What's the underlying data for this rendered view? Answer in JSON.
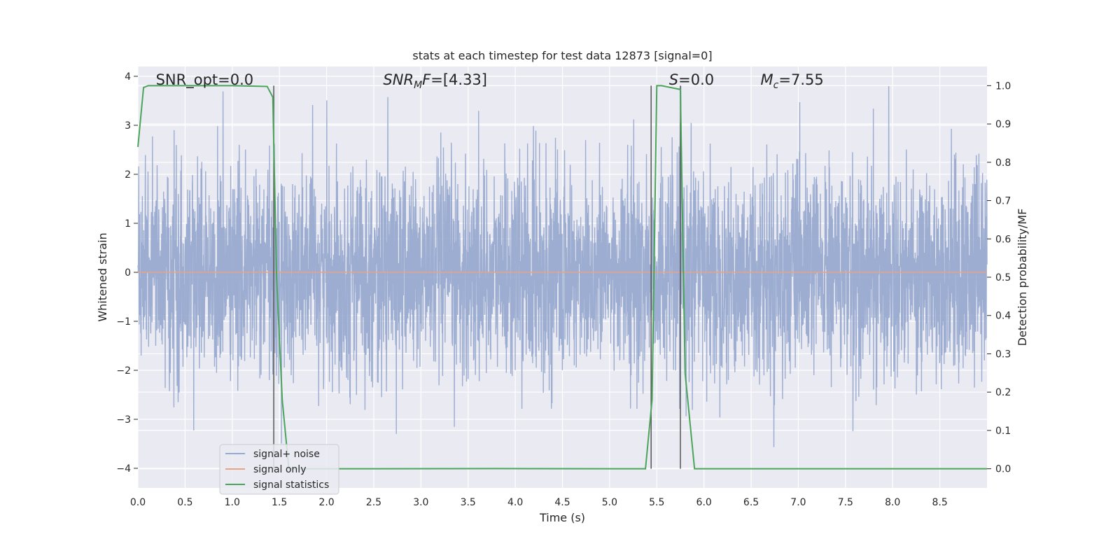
{
  "chart_data": {
    "type": "line",
    "title": "stats at each timestep for test data 12873 [signal=0]",
    "xlabel": "Time (s)",
    "ylabel_left": "Whitened strain",
    "ylabel_right": "Detection probability/MF",
    "xlim": [
      0.0,
      9.0
    ],
    "ylim_left": [
      -4.4,
      4.2
    ],
    "ylim_right": [
      -0.05,
      1.05
    ],
    "x_ticks": [
      "0.0",
      "0.5",
      "1.0",
      "1.5",
      "2.0",
      "2.5",
      "3.0",
      "3.5",
      "4.0",
      "4.5",
      "5.0",
      "5.5",
      "6.0",
      "6.5",
      "7.0",
      "7.5",
      "8.0",
      "8.5"
    ],
    "y_left_ticks": [
      "4",
      "3",
      "2",
      "1",
      "0",
      "−1",
      "−2",
      "−3",
      "−4"
    ],
    "y_right_ticks": [
      "1.0",
      "0.9",
      "0.8",
      "0.7",
      "0.6",
      "0.5",
      "0.4",
      "0.3",
      "0.2",
      "0.1",
      "0.0"
    ],
    "grid": true,
    "legend_position": "lower-left",
    "series": [
      {
        "name": "signal+ noise",
        "color": "#98aacf",
        "axis": "left",
        "style": "dense noise ~N(0,1) clipped to about ±2.8 with spikes to ±3.8"
      },
      {
        "name": "signal only",
        "color": "#e8a384",
        "axis": "left",
        "values_x": [
          0.0,
          9.0
        ],
        "values_y": [
          0.0,
          0.0
        ]
      },
      {
        "name": "signal statistics",
        "color": "#4aa55a",
        "axis": "right",
        "x": [
          0.0,
          0.06,
          0.11,
          0.2,
          1.0,
          1.37,
          1.43,
          1.47,
          1.53,
          1.6,
          1.8,
          2.5,
          3.8,
          5.0,
          5.38,
          5.45,
          5.5,
          5.55,
          5.75,
          5.8,
          5.9,
          6.0,
          7.0,
          8.0,
          9.0
        ],
        "y": [
          0.84,
          0.995,
          1.0,
          1.0,
          1.0,
          0.998,
          0.97,
          0.5,
          0.18,
          0.0,
          0.0,
          0.0,
          0.0005,
          0.0,
          0.0,
          0.18,
          1.0,
          1.0,
          0.99,
          0.25,
          0.0,
          0.0,
          0.0,
          0.0,
          0.0
        ]
      }
    ],
    "vertical_lines_x": [
      1.44,
      5.44,
      5.75
    ],
    "annotations": [
      {
        "text": "SNR_opt=0.0",
        "x": 0.19
      },
      {
        "text": "SNR",
        "sub": "M",
        "tail": "F=[4.33]",
        "italic": true,
        "x": 2.6
      },
      {
        "text": "S",
        "tail": "=0.0",
        "italic": true,
        "x": 5.63
      },
      {
        "text": "M",
        "sub": "c",
        "tail": "=7.55",
        "italic": true,
        "x": 6.6
      }
    ]
  }
}
